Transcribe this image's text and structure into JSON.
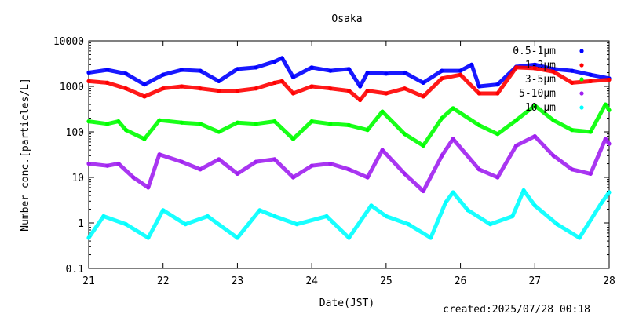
{
  "chart_data": {
    "type": "scatter",
    "title": "Osaka",
    "xlabel": "Date(JST)",
    "ylabel": "Number conc.[particles/L]",
    "footer": "created:2025/07/28 00:18",
    "x_ticks": [
      "21",
      "22",
      "23",
      "24",
      "25",
      "26",
      "27",
      "28"
    ],
    "xlim": [
      21,
      28
    ],
    "y_ticks": [
      "0.1",
      "1",
      "10",
      "100",
      "1000",
      "10000"
    ],
    "ylim": [
      0.1,
      10000
    ],
    "y_scale": "log",
    "grid": false,
    "legend_position": "top-right",
    "series": [
      {
        "name": "0.5-1μm",
        "color": "#0000ff",
        "points": [
          [
            21.0,
            2000
          ],
          [
            21.25,
            2300
          ],
          [
            21.5,
            1900
          ],
          [
            21.75,
            1100
          ],
          [
            22.0,
            1800
          ],
          [
            22.25,
            2300
          ],
          [
            22.5,
            2200
          ],
          [
            22.75,
            1300
          ],
          [
            23.0,
            2400
          ],
          [
            23.25,
            2600
          ],
          [
            23.5,
            3500
          ],
          [
            23.6,
            4200
          ],
          [
            23.75,
            1600
          ],
          [
            24.0,
            2600
          ],
          [
            24.25,
            2200
          ],
          [
            24.5,
            2400
          ],
          [
            24.65,
            1000
          ],
          [
            24.75,
            2000
          ],
          [
            25.0,
            1900
          ],
          [
            25.25,
            2000
          ],
          [
            25.5,
            1200
          ],
          [
            25.75,
            2200
          ],
          [
            26.0,
            2200
          ],
          [
            26.15,
            3000
          ],
          [
            26.25,
            1000
          ],
          [
            26.5,
            1100
          ],
          [
            26.75,
            2700
          ],
          [
            27.0,
            3000
          ],
          [
            27.25,
            2400
          ],
          [
            27.5,
            2200
          ],
          [
            27.75,
            1800
          ],
          [
            28.0,
            1500
          ]
        ]
      },
      {
        "name": "1-3μm",
        "color": "#ff0000",
        "points": [
          [
            21.0,
            1300
          ],
          [
            21.25,
            1200
          ],
          [
            21.5,
            900
          ],
          [
            21.75,
            600
          ],
          [
            22.0,
            900
          ],
          [
            22.25,
            1000
          ],
          [
            22.5,
            900
          ],
          [
            22.75,
            800
          ],
          [
            23.0,
            800
          ],
          [
            23.25,
            900
          ],
          [
            23.5,
            1200
          ],
          [
            23.6,
            1300
          ],
          [
            23.75,
            700
          ],
          [
            24.0,
            1000
          ],
          [
            24.25,
            900
          ],
          [
            24.5,
            800
          ],
          [
            24.65,
            500
          ],
          [
            24.75,
            800
          ],
          [
            25.0,
            700
          ],
          [
            25.25,
            900
          ],
          [
            25.5,
            600
          ],
          [
            25.75,
            1500
          ],
          [
            26.0,
            1800
          ],
          [
            26.25,
            700
          ],
          [
            26.5,
            700
          ],
          [
            26.75,
            2600
          ],
          [
            27.0,
            2500
          ],
          [
            27.25,
            2100
          ],
          [
            27.5,
            1200
          ],
          [
            27.75,
            1300
          ],
          [
            28.0,
            1400
          ]
        ]
      },
      {
        "name": "3-5μm",
        "color": "#00ff00",
        "points": [
          [
            21.0,
            170
          ],
          [
            21.25,
            150
          ],
          [
            21.4,
            170
          ],
          [
            21.5,
            110
          ],
          [
            21.75,
            70
          ],
          [
            21.95,
            180
          ],
          [
            22.25,
            160
          ],
          [
            22.5,
            150
          ],
          [
            22.75,
            100
          ],
          [
            23.0,
            160
          ],
          [
            23.25,
            150
          ],
          [
            23.5,
            170
          ],
          [
            23.75,
            70
          ],
          [
            24.0,
            170
          ],
          [
            24.25,
            150
          ],
          [
            24.5,
            140
          ],
          [
            24.75,
            110
          ],
          [
            24.95,
            280
          ],
          [
            25.25,
            90
          ],
          [
            25.5,
            50
          ],
          [
            25.75,
            200
          ],
          [
            25.9,
            330
          ],
          [
            26.25,
            140
          ],
          [
            26.5,
            90
          ],
          [
            26.75,
            180
          ],
          [
            27.0,
            380
          ],
          [
            27.25,
            180
          ],
          [
            27.5,
            110
          ],
          [
            27.75,
            100
          ],
          [
            27.95,
            400
          ],
          [
            28.0,
            300
          ]
        ]
      },
      {
        "name": "5-10μm",
        "color": "#a020f0",
        "points": [
          [
            21.0,
            20
          ],
          [
            21.25,
            18
          ],
          [
            21.4,
            20
          ],
          [
            21.6,
            10
          ],
          [
            21.8,
            6
          ],
          [
            21.95,
            32
          ],
          [
            22.25,
            22
          ],
          [
            22.5,
            15
          ],
          [
            22.75,
            25
          ],
          [
            23.0,
            12
          ],
          [
            23.25,
            22
          ],
          [
            23.5,
            25
          ],
          [
            23.75,
            10
          ],
          [
            24.0,
            18
          ],
          [
            24.25,
            20
          ],
          [
            24.5,
            15
          ],
          [
            24.75,
            10
          ],
          [
            24.95,
            40
          ],
          [
            25.25,
            12
          ],
          [
            25.5,
            5
          ],
          [
            25.75,
            30
          ],
          [
            25.9,
            70
          ],
          [
            26.25,
            15
          ],
          [
            26.5,
            10
          ],
          [
            26.75,
            50
          ],
          [
            27.0,
            80
          ],
          [
            27.25,
            30
          ],
          [
            27.5,
            15
          ],
          [
            27.75,
            12
          ],
          [
            27.95,
            70
          ],
          [
            28.0,
            55
          ]
        ]
      },
      {
        "name": "10-μm",
        "color": "#00ffff",
        "points": [
          [
            21.0,
            0.47
          ],
          [
            21.2,
            1.4
          ],
          [
            21.5,
            0.94
          ],
          [
            21.8,
            0.47
          ],
          [
            22.0,
            1.9
          ],
          [
            22.3,
            0.94
          ],
          [
            22.6,
            1.4
          ],
          [
            23.0,
            0.47
          ],
          [
            23.3,
            1.9
          ],
          [
            23.5,
            1.4
          ],
          [
            23.8,
            0.94
          ],
          [
            24.2,
            1.4
          ],
          [
            24.5,
            0.47
          ],
          [
            24.8,
            2.4
          ],
          [
            25.0,
            1.4
          ],
          [
            25.3,
            0.94
          ],
          [
            25.6,
            0.47
          ],
          [
            25.8,
            2.8
          ],
          [
            25.9,
            4.7
          ],
          [
            26.1,
            1.9
          ],
          [
            26.4,
            0.94
          ],
          [
            26.7,
            1.4
          ],
          [
            26.85,
            5.2
          ],
          [
            27.0,
            2.4
          ],
          [
            27.3,
            0.94
          ],
          [
            27.6,
            0.47
          ],
          [
            27.9,
            2.8
          ],
          [
            28.0,
            4.7
          ]
        ]
      }
    ]
  }
}
